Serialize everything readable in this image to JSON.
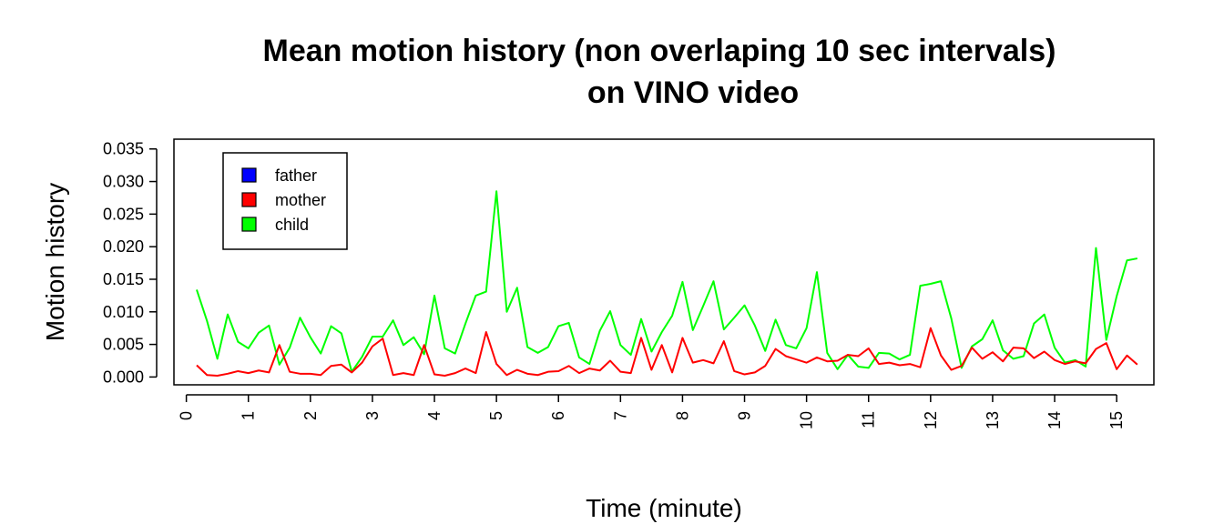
{
  "chart_data": {
    "type": "line",
    "title_line1": "Mean motion history (non overlaping 10 sec intervals)",
    "title_line2": "on VINO video",
    "xlabel": "Time (minute)",
    "ylabel": "Motion history",
    "xlim": [
      -0.2,
      15.6
    ],
    "ylim": [
      -0.0012,
      0.0365
    ],
    "x_ticks": [
      "0",
      "1",
      "2",
      "3",
      "4",
      "5",
      "6",
      "7",
      "8",
      "9",
      "10",
      "11",
      "12",
      "13",
      "14",
      "15"
    ],
    "y_ticks": [
      "0.000",
      "0.005",
      "0.010",
      "0.015",
      "0.020",
      "0.025",
      "0.030",
      "0.035"
    ],
    "legend_position": "top-left",
    "grid": false,
    "series": [
      {
        "name": "father",
        "color": "#0000ff",
        "values": []
      },
      {
        "name": "mother",
        "color": "#ff0000",
        "values": [
          0.0018,
          0.0003,
          0.0002,
          0.0005,
          0.0009,
          0.0006,
          0.001,
          0.0007,
          0.0049,
          0.0008,
          0.0005,
          0.0005,
          0.0003,
          0.0017,
          0.0019,
          0.0007,
          0.0022,
          0.0047,
          0.0059,
          0.0003,
          0.0006,
          0.0003,
          0.0049,
          0.0004,
          0.0002,
          0.0006,
          0.0013,
          0.0006,
          0.0069,
          0.002,
          0.0003,
          0.0011,
          0.0005,
          0.0003,
          0.0008,
          0.0009,
          0.0017,
          0.0006,
          0.0013,
          0.001,
          0.0025,
          0.0008,
          0.0006,
          0.006,
          0.0011,
          0.0049,
          0.0007,
          0.006,
          0.0022,
          0.0026,
          0.0021,
          0.0055,
          0.0009,
          0.0004,
          0.0007,
          0.0017,
          0.0043,
          0.0032,
          0.0027,
          0.0022,
          0.003,
          0.0024,
          0.0025,
          0.0034,
          0.0032,
          0.0044,
          0.002,
          0.0022,
          0.0018,
          0.002,
          0.0015,
          0.0075,
          0.0033,
          0.0011,
          0.0017,
          0.0045,
          0.0028,
          0.0038,
          0.0024,
          0.0045,
          0.0044,
          0.0029,
          0.0039,
          0.0026,
          0.002,
          0.0024,
          0.0021,
          0.0043,
          0.0052,
          0.0012,
          0.0033,
          0.0019
        ]
      },
      {
        "name": "child",
        "color": "#00ff00",
        "values": [
          0.0134,
          0.0086,
          0.0028,
          0.0096,
          0.0054,
          0.0044,
          0.0068,
          0.0079,
          0.0019,
          0.0045,
          0.0091,
          0.0061,
          0.0036,
          0.0078,
          0.0067,
          0.0008,
          0.0031,
          0.0062,
          0.0062,
          0.0087,
          0.0049,
          0.0061,
          0.0035,
          0.0125,
          0.0044,
          0.0036,
          0.0082,
          0.0125,
          0.0131,
          0.0285,
          0.01,
          0.0137,
          0.0046,
          0.0037,
          0.0046,
          0.0078,
          0.0083,
          0.003,
          0.002,
          0.0071,
          0.0101,
          0.0049,
          0.0034,
          0.0089,
          0.0039,
          0.0069,
          0.0094,
          0.0146,
          0.0072,
          0.0109,
          0.0147,
          0.0073,
          0.0091,
          0.011,
          0.0079,
          0.004,
          0.0088,
          0.0049,
          0.0044,
          0.0075,
          0.0161,
          0.0037,
          0.0012,
          0.0034,
          0.0016,
          0.0014,
          0.0037,
          0.0036,
          0.0027,
          0.0034,
          0.014,
          0.0143,
          0.0147,
          0.009,
          0.0014,
          0.0047,
          0.0058,
          0.0087,
          0.0041,
          0.0028,
          0.0032,
          0.0082,
          0.0096,
          0.0045,
          0.0022,
          0.0026,
          0.0016,
          0.0198,
          0.0057,
          0.0124,
          0.0179,
          0.0182
        ]
      }
    ]
  }
}
